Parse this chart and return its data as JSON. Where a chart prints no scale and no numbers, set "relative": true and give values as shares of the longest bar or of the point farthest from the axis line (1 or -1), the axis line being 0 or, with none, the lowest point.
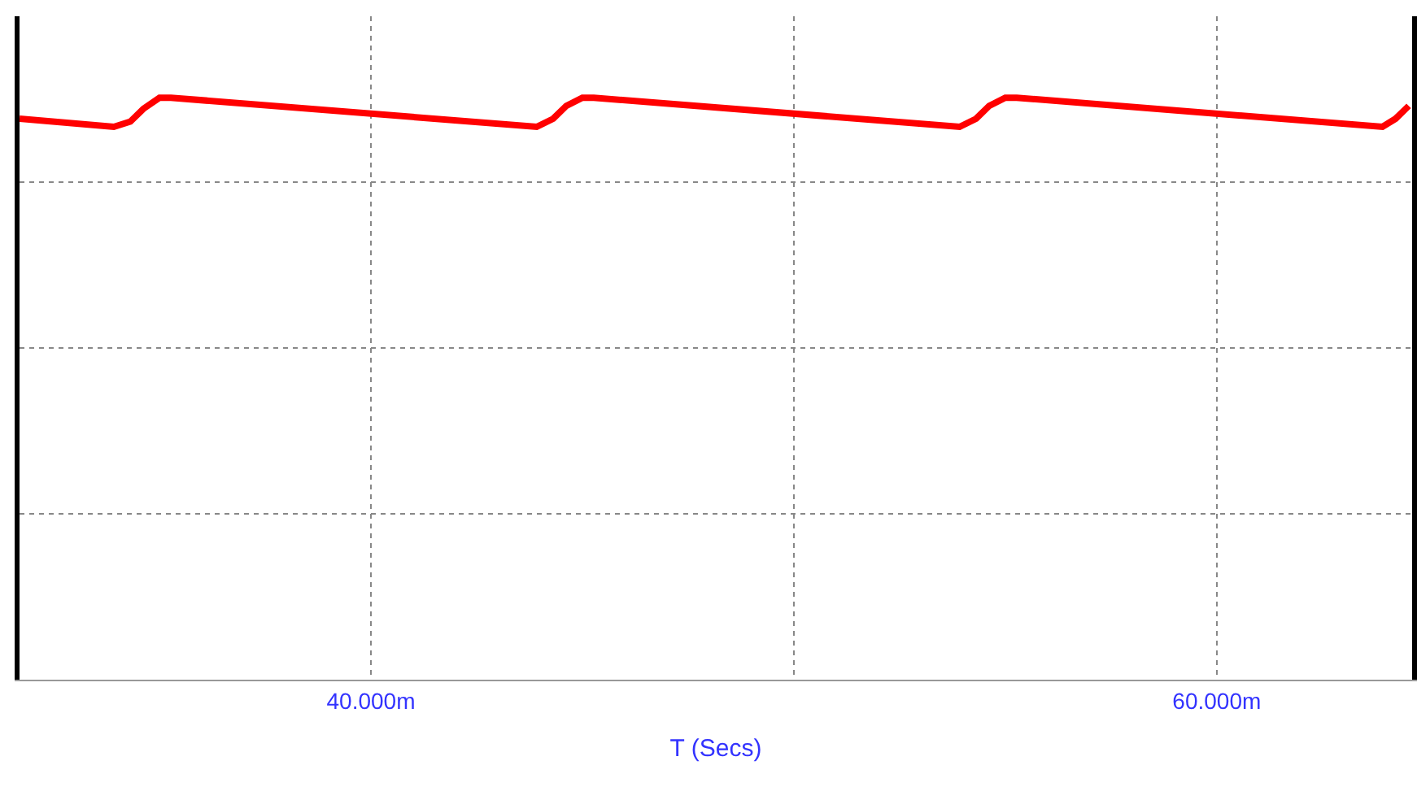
{
  "chart_data": {
    "type": "line",
    "relative": true,
    "xlabel": "T (Secs)",
    "x": [
      31.69,
      33.92,
      34.31,
      34.62,
      35.0,
      35.27,
      43.92,
      44.31,
      44.62,
      45.0,
      45.27,
      53.92,
      54.31,
      54.62,
      55.0,
      55.27,
      63.92,
      64.23,
      64.54
    ],
    "series": [
      {
        "color": "#ff0000",
        "values": [
          0.964,
          0.95,
          0.959,
          0.981,
          1,
          1,
          0.95,
          0.964,
          0.986,
          1,
          1,
          0.95,
          0.964,
          0.986,
          1,
          1,
          0.95,
          0.964,
          0.986
        ]
      }
    ],
    "xlim": [
      31.69,
      64.62
    ],
    "xticks": [
      {
        "value": 40,
        "label": "40.000m"
      },
      {
        "value": 50,
        "label": null
      },
      {
        "value": 60,
        "label": "60.000m"
      }
    ],
    "grid": true,
    "marker": "none",
    "line_style": "solid"
  }
}
